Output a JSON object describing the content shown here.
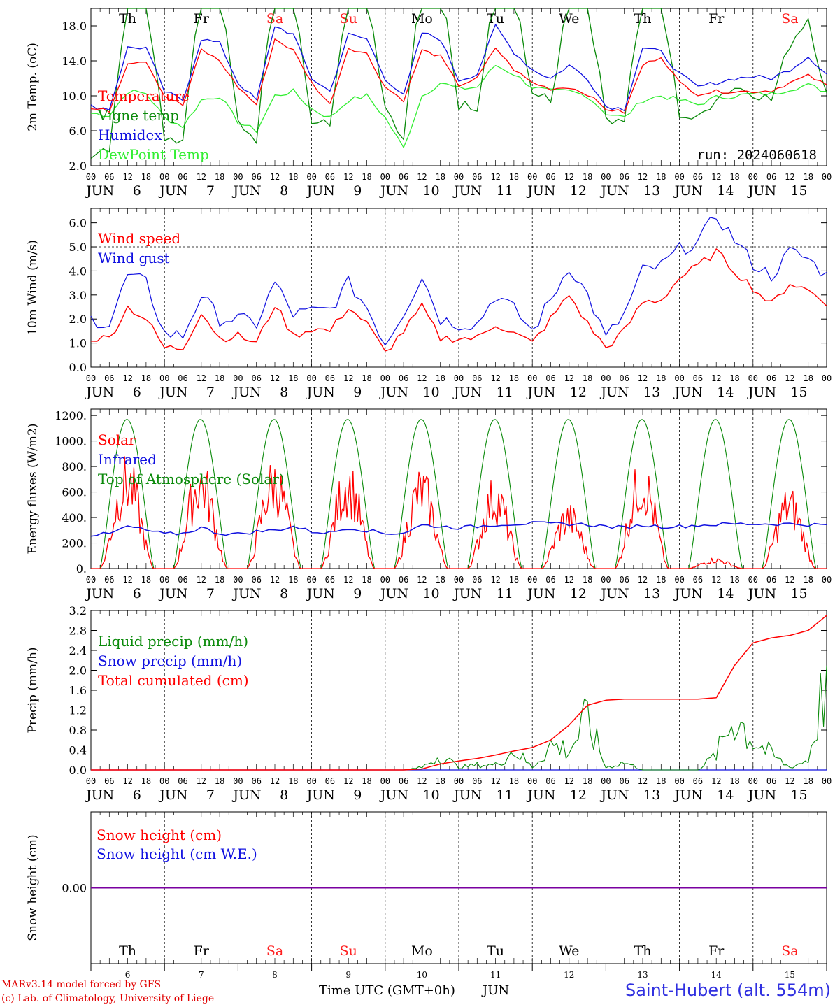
{
  "colors": {
    "red": "#ff0000",
    "darkgreen": "#0a8a0a",
    "blue": "#1010e0",
    "lightgreen": "#33ee33",
    "purple": "#7a00a0",
    "weekend": "#ff2020"
  },
  "days": [
    "6",
    "7",
    "8",
    "9",
    "10",
    "11",
    "12",
    "13",
    "14",
    "15"
  ],
  "day_month": "JUN",
  "weekdays": [
    {
      "label": "Th",
      "weekend": false
    },
    {
      "label": "Fr",
      "weekend": false
    },
    {
      "label": "Sa",
      "weekend": true
    },
    {
      "label": "Su",
      "weekend": true
    },
    {
      "label": "Mo",
      "weekend": false
    },
    {
      "label": "Tu",
      "weekend": false
    },
    {
      "label": "We",
      "weekend": false
    },
    {
      "label": "Th",
      "weekend": false
    },
    {
      "label": "Fr",
      "weekend": false
    },
    {
      "label": "Sa",
      "weekend": true
    }
  ],
  "hour_ticks": [
    "00",
    "06",
    "12",
    "18"
  ],
  "final_tick": "00",
  "footer": {
    "credit1": "MARv3.14 model forced by GFS",
    "credit2": "(c) Lab. of Climatology, University of Liege",
    "time_label": "Time UTC (GMT+0h)",
    "month_label": "JUN",
    "station": "Saint-Hubert (alt. 554m)"
  },
  "chart_data": [
    {
      "type": "line",
      "ylabel": "2m Temp. (oC)",
      "ylim": [
        2,
        20
      ],
      "yticks": [
        "2.0",
        "6.0",
        "10.0",
        "14.0",
        "18.0"
      ],
      "ytick_values": [
        2,
        6,
        10,
        14,
        18
      ],
      "annotation": "run: 2024060618",
      "x_hours": [
        0,
        6,
        12,
        18,
        24,
        30,
        36,
        42,
        48,
        54,
        60,
        66,
        72,
        78,
        84,
        90,
        96,
        102,
        108,
        114,
        120,
        126,
        132,
        138,
        144,
        150,
        156,
        162,
        168,
        174,
        180,
        186,
        192,
        198,
        204,
        210,
        216,
        222,
        228,
        234,
        240
      ],
      "series": [
        {
          "name": "Temperature",
          "color_key": "red",
          "values": [
            8.5,
            8.3,
            13.8,
            14.0,
            10.0,
            8.9,
            15.3,
            14.0,
            11.0,
            9.0,
            16.5,
            15.2,
            11.5,
            9.0,
            15.5,
            14.8,
            11.0,
            9.5,
            15.2,
            14.5,
            11.2,
            12.0,
            15.5,
            13.0,
            11.5,
            10.8,
            11.0,
            10.2,
            8.5,
            8.1,
            13.5,
            14.5,
            11.5,
            10.2,
            10.5,
            10.5,
            10.5,
            10.6,
            11.5,
            12.3,
            11.2
          ]
        },
        {
          "name": "Vigne temp",
          "color_key": "darkgreen",
          "values": [
            3.5,
            4.2,
            22,
            22,
            5.5,
            5.0,
            24,
            22,
            7.0,
            5.2,
            24,
            22,
            7.0,
            6.5,
            23,
            22,
            8.0,
            5.0,
            24,
            23,
            9.0,
            8.0,
            23,
            22,
            10.5,
            9.0,
            22,
            21,
            7.5,
            7.5,
            22,
            21,
            8.0,
            7.2,
            10,
            11,
            10.5,
            9.5,
            16,
            19,
            10.0
          ]
        },
        {
          "name": "Humidex",
          "color_key": "blue",
          "values": [
            8.8,
            8.5,
            15.5,
            15.5,
            10.5,
            9.5,
            16.5,
            16.0,
            11.5,
            9.5,
            18.0,
            17.0,
            12.0,
            10.5,
            17.0,
            16.5,
            12.0,
            10.0,
            17.2,
            16.5,
            11.8,
            12.5,
            18.0,
            15.0,
            13.0,
            12.0,
            13.5,
            12.0,
            8.8,
            8.5,
            15.5,
            15.0,
            12.5,
            11.0,
            11.5,
            12.0,
            12.2,
            12.0,
            13.0,
            14.5,
            12.5
          ]
        },
        {
          "name": "DewPoint Temp",
          "color_key": "lightgreen",
          "values": [
            8.0,
            7.8,
            10.5,
            10.3,
            7.5,
            6.5,
            9.5,
            10.0,
            7.0,
            6.0,
            10.0,
            10.5,
            8.5,
            7.5,
            9.5,
            10.0,
            7.5,
            4.0,
            10.0,
            11.5,
            10.8,
            11.0,
            13.5,
            12.5,
            11.0,
            10.5,
            10.5,
            10.0,
            8.0,
            7.5,
            9.5,
            10.0,
            9.5,
            9.0,
            9.8,
            10.0,
            10.2,
            10.2,
            10.8,
            11.2,
            10.5
          ]
        }
      ]
    },
    {
      "type": "line",
      "ylabel": "10m Wind (m/s)",
      "ylim": [
        0,
        6.6
      ],
      "yticks": [
        "0.0",
        "1.0",
        "2.0",
        "3.0",
        "4.0",
        "5.0",
        "6.0"
      ],
      "ytick_values": [
        0,
        1,
        2,
        3,
        4,
        5,
        6
      ],
      "reference_line": 5.0,
      "x_hours": [
        0,
        6,
        12,
        18,
        24,
        30,
        36,
        42,
        48,
        54,
        60,
        66,
        72,
        78,
        84,
        90,
        96,
        102,
        108,
        114,
        120,
        126,
        132,
        138,
        144,
        150,
        156,
        162,
        168,
        174,
        180,
        186,
        192,
        198,
        204,
        210,
        216,
        222,
        228,
        234,
        240
      ],
      "series": [
        {
          "name": "Wind speed",
          "color_key": "red",
          "values": [
            1.2,
            1.2,
            2.5,
            2.0,
            0.8,
            0.8,
            2.3,
            1.2,
            1.3,
            1.0,
            2.6,
            1.3,
            1.6,
            1.5,
            2.5,
            1.8,
            0.6,
            1.5,
            2.5,
            1.2,
            1.2,
            1.2,
            1.8,
            1.4,
            1.0,
            2.0,
            3.0,
            1.8,
            0.8,
            1.5,
            2.7,
            2.8,
            3.7,
            4.2,
            4.8,
            4.0,
            3.3,
            2.6,
            3.5,
            3.2,
            2.7
          ]
        },
        {
          "name": "Wind gust",
          "color_key": "blue",
          "values": [
            2.0,
            1.8,
            3.8,
            3.5,
            1.4,
            1.3,
            3.0,
            2.0,
            2.0,
            1.8,
            3.5,
            2.2,
            2.3,
            2.4,
            3.5,
            2.5,
            1.0,
            2.3,
            3.8,
            2.0,
            1.8,
            1.8,
            3.0,
            2.4,
            1.5,
            2.8,
            4.2,
            3.0,
            1.2,
            2.2,
            4.0,
            4.2,
            4.9,
            5.2,
            6.3,
            5.3,
            4.3,
            3.8,
            4.8,
            4.5,
            3.8
          ]
        }
      ]
    },
    {
      "type": "line",
      "ylabel": "Energy fluxes (W/m2)",
      "ylim": [
        0,
        1250
      ],
      "yticks": [
        "0.",
        "200.",
        "400.",
        "600.",
        "800.",
        "1000.",
        "1200."
      ],
      "ytick_values": [
        0,
        200,
        400,
        600,
        800,
        1000,
        1200
      ],
      "daily_peaks": {
        "solar": [
          910,
          900,
          900,
          880,
          820,
          740,
          530,
          900,
          90,
          660
        ],
        "toa": [
          1170,
          1170,
          1170,
          1170,
          1170,
          1170,
          1170,
          1170,
          1170,
          1170
        ]
      },
      "series": [
        {
          "name": "Solar",
          "color_key": "red"
        },
        {
          "name": "Infrared",
          "color_key": "blue",
          "values": [
            265,
            270,
            330,
            300,
            270,
            275,
            320,
            275,
            270,
            290,
            300,
            330,
            290,
            280,
            320,
            300,
            275,
            280,
            340,
            330,
            320,
            330,
            345,
            350,
            355,
            350,
            350,
            345,
            330,
            320,
            340,
            330,
            330,
            340,
            345,
            350,
            350,
            350,
            350,
            345,
            340
          ]
        },
        {
          "name": "Top of Atmosphere (Solar)",
          "color_key": "darkgreen"
        }
      ]
    },
    {
      "type": "line",
      "ylabel": "Precip (mm/h)",
      "ylim": [
        0,
        3.2
      ],
      "yticks": [
        "0.0",
        "0.4",
        "0.8",
        "1.2",
        "1.6",
        "2.0",
        "2.4",
        "2.8",
        "3.2"
      ],
      "ytick_values": [
        0,
        0.4,
        0.8,
        1.2,
        1.6,
        2.0,
        2.4,
        2.8,
        3.2
      ],
      "x_hours": [
        0,
        6,
        12,
        18,
        24,
        30,
        36,
        42,
        48,
        54,
        60,
        66,
        72,
        78,
        84,
        90,
        96,
        102,
        108,
        114,
        120,
        126,
        132,
        138,
        144,
        150,
        156,
        162,
        168,
        174,
        180,
        186,
        192,
        198,
        204,
        210,
        216,
        222,
        228,
        234,
        240
      ],
      "series": [
        {
          "name": "Liquid precip (mm/h)",
          "color_key": "darkgreen",
          "values": [
            0,
            0,
            0,
            0,
            0,
            0,
            0,
            0,
            0,
            0,
            0,
            0,
            0,
            0,
            0,
            0,
            0,
            0,
            0.05,
            0.3,
            0.05,
            0.1,
            0.1,
            0.4,
            0.05,
            0.5,
            0.4,
            1.0,
            0.05,
            0.15,
            0,
            0,
            0,
            0,
            0.3,
            1.1,
            0.6,
            0.3,
            0.05,
            0.2,
            1.9
          ]
        },
        {
          "name": "Snow precip (mm/h)",
          "color_key": "blue",
          "values": [
            0,
            0,
            0,
            0,
            0,
            0,
            0,
            0,
            0,
            0,
            0,
            0,
            0,
            0,
            0,
            0,
            0,
            0,
            0,
            0,
            0,
            0,
            0,
            0,
            0,
            0,
            0,
            0,
            0,
            0,
            0,
            0,
            0,
            0,
            0,
            0,
            0,
            0,
            0,
            0,
            0
          ]
        },
        {
          "name": "Total cumulated (cm)",
          "color_key": "red",
          "values": [
            0,
            0,
            0,
            0,
            0,
            0,
            0,
            0,
            0,
            0,
            0,
            0,
            0,
            0,
            0,
            0,
            0,
            0,
            0.02,
            0.12,
            0.18,
            0.23,
            0.3,
            0.38,
            0.45,
            0.6,
            0.9,
            1.3,
            1.4,
            1.42,
            1.42,
            1.42,
            1.42,
            1.42,
            1.45,
            2.1,
            2.55,
            2.65,
            2.7,
            2.8,
            3.1
          ]
        }
      ]
    },
    {
      "type": "line",
      "ylabel": "Snow height (cm)",
      "ylim": [
        -1,
        1
      ],
      "yticks": [
        "0.00"
      ],
      "ytick_values": [
        0
      ],
      "series": [
        {
          "name": "Snow height (cm)",
          "color_key": "red",
          "values": [
            0,
            0
          ]
        },
        {
          "name": "Snow height (cm W.E.)",
          "color_key": "blue",
          "values": [
            0,
            0
          ]
        }
      ]
    }
  ]
}
